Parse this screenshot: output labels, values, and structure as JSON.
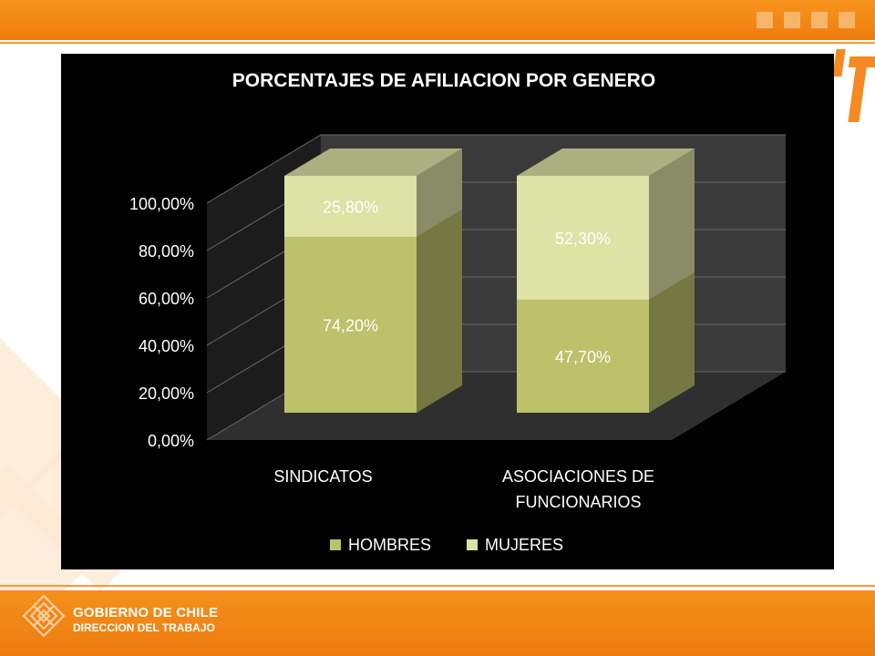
{
  "slide": {
    "org_line1": "GOBIERNO DE CHILE",
    "org_line2": "DIRECCION DEL TRABAJO",
    "accent_color": "#f7941d"
  },
  "chart_data": {
    "type": "bar",
    "stacked": true,
    "three_d": true,
    "title": "PORCENTAJES DE AFILIACION POR GENERO",
    "categories": [
      "SINDICATOS",
      "ASOCIACIONES DE FUNCIONARIOS"
    ],
    "category_lines": [
      [
        "SINDICATOS"
      ],
      [
        "ASOCIACIONES DE",
        "FUNCIONARIOS"
      ]
    ],
    "series": [
      {
        "name": "HOMBRES",
        "values": [
          74.2,
          47.7
        ],
        "labels": [
          "74,20%",
          "47,70%"
        ],
        "color": "#bcc16a"
      },
      {
        "name": "MUJERES",
        "values": [
          25.8,
          52.3
        ],
        "labels": [
          "25,80%",
          "52,30%"
        ],
        "color": "#dde2a5"
      }
    ],
    "yticks": [
      "0,00%",
      "20,00%",
      "40,00%",
      "60,00%",
      "80,00%",
      "100,00%"
    ],
    "ylim": [
      0,
      100
    ],
    "legend_position": "bottom",
    "grid": true,
    "background": "#000000"
  }
}
